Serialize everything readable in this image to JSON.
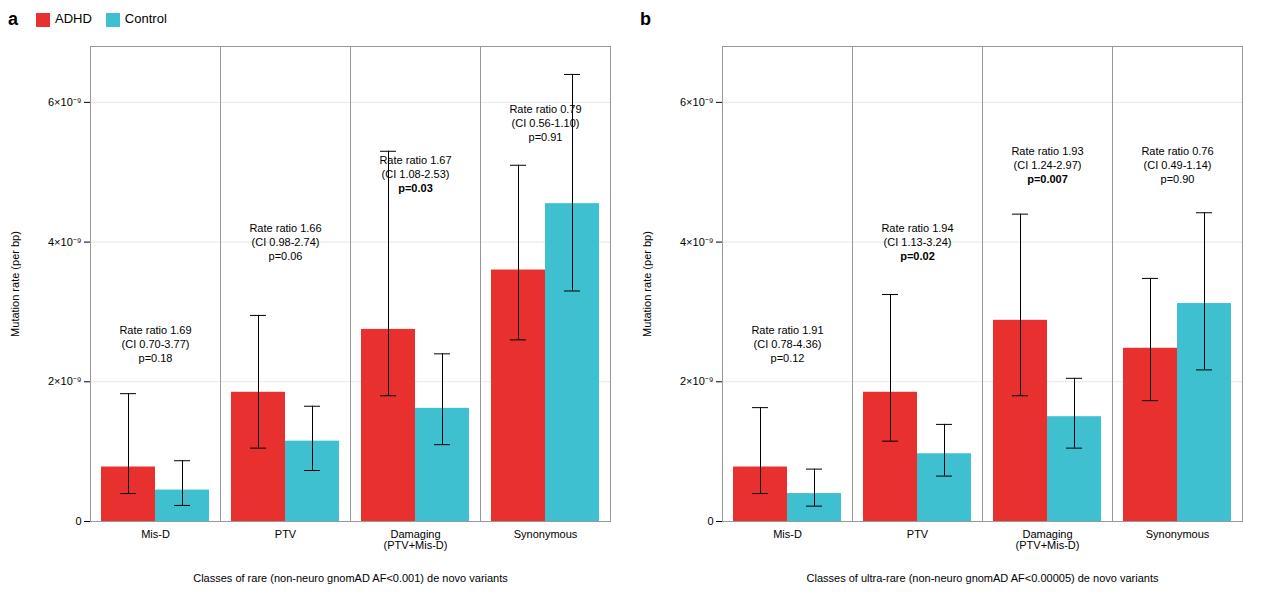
{
  "chart_data": [
    {
      "type": "bar",
      "title": "a",
      "xlabel": "Classes of rare (non-neuro gnomAD AF<0.001) de novo variants",
      "ylabel": "Mutation rate (per bp)",
      "categories": [
        "Mis-D",
        "PTV",
        "Damaging\n(PTV+Mis-D)",
        "Synonymous"
      ],
      "series": [
        {
          "name": "ADHD",
          "color": "#E8302E",
          "values": [
            7.8e-10,
            1.85e-09,
            2.75e-09,
            3.6e-09
          ],
          "error_low": [
            3.8e-10,
            8e-10,
            9.5e-10,
            1e-09
          ],
          "error_high": [
            1.05e-09,
            1.1e-09,
            2.55e-09,
            1.5e-09
          ]
        },
        {
          "name": "Control",
          "color": "#3EC0D0",
          "values": [
            4.5e-10,
            1.15e-09,
            1.62e-09,
            4.55e-09
          ],
          "error_low": [
            2.2e-10,
            4.2e-10,
            5.2e-10,
            1.25e-09
          ],
          "error_high": [
            4.2e-10,
            5e-10,
            7.8e-10,
            1.85e-09
          ]
        }
      ],
      "ylim": [
        0,
        6.8e-09
      ],
      "yticks": [
        0,
        {
          "value": 2e-09,
          "label": "2×10⁻⁹"
        },
        {
          "value": 4e-09,
          "label": "4×10⁻⁹"
        },
        {
          "value": 6e-09,
          "label": "6×10⁻⁹"
        }
      ],
      "grid": true,
      "legend": "upper left",
      "annotations": [
        {
          "x": "Mis-D",
          "y": 2.28e-09,
          "lines": [
            "Rate ratio 1.69",
            "(CI 0.70-3.77)",
            "p=0.18"
          ],
          "bold": false
        },
        {
          "x": "PTV",
          "y": 3.75e-09,
          "lines": [
            "Rate ratio 1.66",
            "(CI 0.98-2.74)",
            "p=0.06"
          ],
          "bold": false
        },
        {
          "x": "Damaging\n(PTV+Mis-D)",
          "y": 4.72e-09,
          "lines": [
            "Rate ratio 1.67",
            "(CI 1.08-2.53)",
            "p=0.03"
          ],
          "bold": true
        },
        {
          "x": "Synonymous",
          "y": 5.45e-09,
          "lines": [
            "Rate ratio 0.79",
            "(CI 0.56-1.10)",
            "p=0.91"
          ],
          "bold": false
        }
      ]
    },
    {
      "type": "bar",
      "title": "b",
      "xlabel": "Classes of ultra-rare (non-neuro gnomAD AF<0.00005) de novo variants",
      "ylabel": "Mutation rate (per bp)",
      "categories": [
        "Mis-D",
        "PTV",
        "Damaging\n(PTV+Mis-D)",
        "Synonymous"
      ],
      "series": [
        {
          "name": "ADHD",
          "color": "#E8302E",
          "values": [
            7.8e-10,
            1.85e-09,
            2.88e-09,
            2.48e-09
          ],
          "error_low": [
            3.8e-10,
            7e-10,
            1.08e-09,
            7.5e-10
          ],
          "error_high": [
            8.5e-10,
            1.4e-09,
            1.52e-09,
            1e-09
          ]
        },
        {
          "name": "Control",
          "color": "#3EC0D0",
          "values": [
            4e-10,
            9.7e-10,
            1.5e-09,
            3.12e-09
          ],
          "error_low": [
            1.8e-10,
            3.2e-10,
            4.5e-10,
            9.5e-10
          ],
          "error_high": [
            3.5e-10,
            4.2e-10,
            5.5e-10,
            1.3e-09
          ]
        }
      ],
      "ylim": [
        0,
        6.8e-09
      ],
      "yticks": [
        0,
        {
          "value": 2e-09,
          "label": "2×10⁻⁹"
        },
        {
          "value": 4e-09,
          "label": "4×10⁻⁹"
        },
        {
          "value": 6e-09,
          "label": "6×10⁻⁹"
        }
      ],
      "grid": true,
      "annotations": [
        {
          "x": "Mis-D",
          "y": 2.28e-09,
          "lines": [
            "Rate ratio 1.91",
            "(CI 0.78-4.36)",
            "p=0.12"
          ],
          "bold": false
        },
        {
          "x": "PTV",
          "y": 3.75e-09,
          "lines": [
            "Rate ratio 1.94",
            "(CI 1.13-3.24)",
            "p=0.02"
          ],
          "bold": true
        },
        {
          "x": "Damaging\n(PTV+Mis-D)",
          "y": 4.85e-09,
          "lines": [
            "Rate ratio 1.93",
            "(CI 1.24-2.97)",
            "p=0.007"
          ],
          "bold": true
        },
        {
          "x": "Synonymous",
          "y": 4.85e-09,
          "lines": [
            "Rate ratio 0.76",
            "(CI 0.49-1.14)",
            "p=0.90"
          ],
          "bold": false
        }
      ]
    }
  ]
}
